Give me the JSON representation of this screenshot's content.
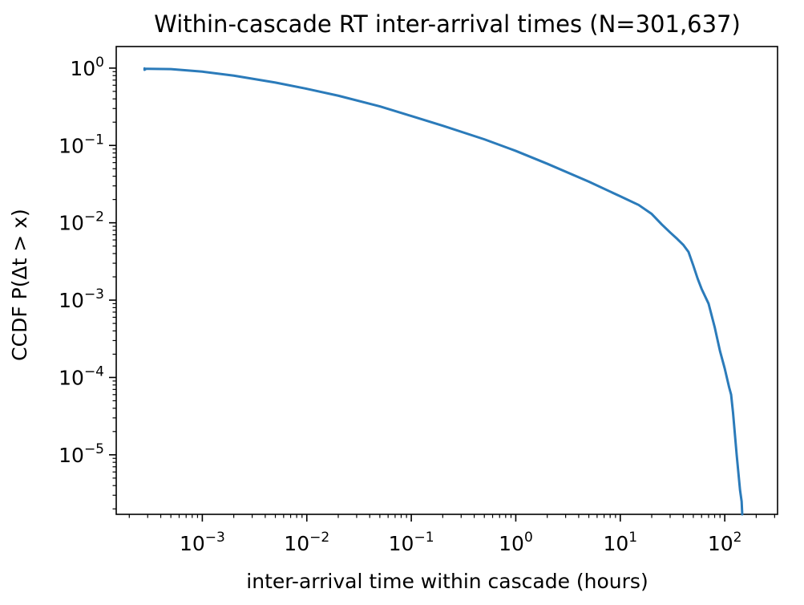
{
  "chart_data": {
    "type": "line",
    "title": "Within-cascade RT inter-arrival times (N=301,637)",
    "xlabel": "inter-arrival time within cascade (hours)",
    "ylabel": "CCDF  P(Δt > x)",
    "x_scale": "log",
    "y_scale": "log",
    "xlim": [
      0.00015,
      320
    ],
    "ylim": [
      1.7e-06,
      1.9
    ],
    "grid": false,
    "legend": "none",
    "line_color": "#2b7bba",
    "x_ticks": [
      {
        "value": 0.001,
        "base": "10",
        "exp": "−3"
      },
      {
        "value": 0.01,
        "base": "10",
        "exp": "−2"
      },
      {
        "value": 0.1,
        "base": "10",
        "exp": "−1"
      },
      {
        "value": 1,
        "base": "10",
        "exp": "0"
      },
      {
        "value": 10,
        "base": "10",
        "exp": "1"
      },
      {
        "value": 100,
        "base": "10",
        "exp": "2"
      }
    ],
    "y_ticks": [
      {
        "value": 1,
        "base": "10",
        "exp": "0"
      },
      {
        "value": 0.1,
        "base": "10",
        "exp": "−1"
      },
      {
        "value": 0.01,
        "base": "10",
        "exp": "−2"
      },
      {
        "value": 0.001,
        "base": "10",
        "exp": "−3"
      },
      {
        "value": 0.0001,
        "base": "10",
        "exp": "−4"
      },
      {
        "value": 1e-05,
        "base": "10",
        "exp": "−5"
      }
    ],
    "series": [
      {
        "x": [
          0.00028,
          0.00028,
          0.00029,
          0.0003,
          0.0005,
          0.001,
          0.002,
          0.005,
          0.01,
          0.02,
          0.05,
          0.1,
          0.2,
          0.5,
          1,
          2,
          5,
          10,
          15,
          20,
          25,
          30,
          35,
          40,
          45,
          50,
          55,
          60,
          70,
          80,
          90,
          100,
          110,
          115,
          120,
          130,
          140,
          145,
          147
        ],
        "y": [
          0.99,
          0.95,
          0.98,
          0.98,
          0.97,
          0.9,
          0.8,
          0.65,
          0.54,
          0.44,
          0.32,
          0.24,
          0.18,
          0.12,
          0.085,
          0.058,
          0.034,
          0.022,
          0.017,
          0.013,
          0.0095,
          0.0075,
          0.0062,
          0.0052,
          0.0042,
          0.0028,
          0.0019,
          0.0014,
          0.0009,
          0.00045,
          0.00022,
          0.00013,
          7.5e-05,
          6e-05,
          3.5e-05,
          1e-05,
          3.5e-06,
          2.5e-06,
          1.7e-06
        ]
      }
    ]
  }
}
